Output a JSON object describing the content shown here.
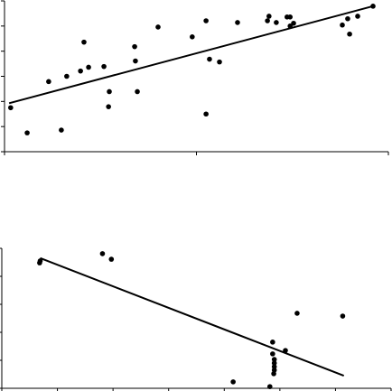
{
  "chart_data": [
    {
      "type": "scatter",
      "x": [
        0.16,
        0.59,
        1.15,
        1.48,
        1.62,
        1.98,
        2.07,
        2.19,
        2.59,
        2.73,
        2.71,
        3.39,
        3.41,
        3.46,
        4.0,
        4.89,
        5.25,
        5.25,
        5.34,
        5.6,
        6.07,
        6.85,
        6.89,
        7.08,
        7.36,
        7.44,
        7.44,
        7.53,
        8.8,
        8.94,
        8.99,
        9.2,
        9.6
      ],
      "values": [
        1.75,
        0.75,
        2.79,
        0.86,
        3.0,
        3.21,
        4.36,
        3.36,
        3.39,
        2.39,
        1.79,
        4.18,
        3.61,
        2.39,
        4.96,
        4.57,
        5.21,
        1.5,
        3.68,
        3.57,
        5.14,
        5.21,
        5.39,
        5.14,
        5.36,
        5.36,
        5.0,
        5.11,
        5.04,
        5.29,
        4.68,
        5.39,
        5.79
      ],
      "color": "#000000",
      "trend": {
        "x": [
          0.12,
          9.6
        ],
        "values": [
          1.93,
          5.79
        ]
      },
      "xlim": [
        0,
        10
      ],
      "xticks": [
        0,
        5,
        10
      ],
      "ylim": [
        0,
        6
      ],
      "yticks": [
        0,
        1,
        2,
        3,
        4,
        5,
        6
      ]
    },
    {
      "type": "scatter",
      "x": [
        0.68,
        0.69,
        1.81,
        1.97,
        4.16,
        4.82,
        4.87,
        4.87,
        4.9,
        4.9,
        4.9,
        4.9,
        4.89,
        5.1,
        5.31,
        6.13
      ],
      "values": [
        4.48,
        4.55,
        4.81,
        4.61,
        0.23,
        0.06,
        1.65,
        1.23,
        1.03,
        0.9,
        0.77,
        0.65,
        0.52,
        1.35,
        2.68,
        2.58
      ],
      "color": "#000000",
      "trend": {
        "x": [
          0.69,
          6.15
        ],
        "values": [
          4.65,
          0.45
        ]
      },
      "xlim": [
        0,
        7
      ],
      "xticks": [
        0,
        1,
        2,
        3,
        4,
        5,
        6,
        7
      ],
      "ylim": [
        0,
        5
      ],
      "yticks": [
        0,
        1,
        2,
        3,
        4,
        5
      ]
    }
  ]
}
